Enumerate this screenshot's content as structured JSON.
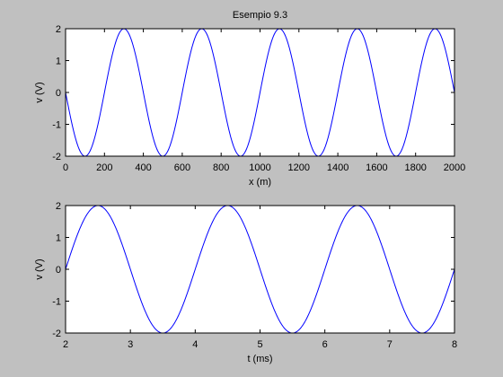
{
  "figure": {
    "background": "#c0c0c0",
    "axes_background": "#ffffff",
    "line_color": "#0000ff"
  },
  "chart_data": [
    {
      "type": "line",
      "title": "Esempio 9.3",
      "xlabel": "x (m)",
      "ylabel": "v (V)",
      "xlim": [
        0,
        2000
      ],
      "ylim": [
        -2,
        2
      ],
      "xticks": [
        0,
        200,
        400,
        600,
        800,
        1000,
        1200,
        1400,
        1600,
        1800,
        2000
      ],
      "yticks": [
        -2,
        -1,
        0,
        1,
        2
      ],
      "xtick_labels": [
        "0",
        "200",
        "400",
        "600",
        "800",
        "1000",
        "1200",
        "1400",
        "1600",
        "1800",
        "2000"
      ],
      "ytick_labels": [
        "-2",
        "-1",
        "0",
        "1",
        "2"
      ],
      "grid": false,
      "series": [
        {
          "color": "#0000ff",
          "x": [
            0,
            50,
            100,
            150,
            200,
            250,
            300,
            350,
            400,
            450,
            500,
            550,
            600,
            650,
            700,
            750,
            800,
            850,
            900,
            950,
            1000,
            1050,
            1100,
            1150,
            1200,
            1250,
            1300,
            1350,
            1400,
            1450,
            1500,
            1550,
            1600,
            1650,
            1700,
            1750,
            1800,
            1850,
            1900,
            1950,
            2000
          ],
          "y": [
            0,
            -1.414,
            -2,
            -1.414,
            0,
            1.414,
            2,
            1.414,
            0,
            -1.414,
            -2,
            -1.414,
            0,
            1.414,
            2,
            1.414,
            0,
            -1.414,
            -2,
            -1.414,
            0,
            1.414,
            2,
            1.414,
            0,
            -1.414,
            -2,
            -1.414,
            0,
            1.414,
            2,
            1.414,
            0,
            -1.414,
            -2,
            -1.414,
            0,
            1.414,
            2,
            1.414,
            0
          ]
        }
      ]
    },
    {
      "type": "line",
      "title": "",
      "xlabel": "t (ms)",
      "ylabel": "v (V)",
      "xlim": [
        2,
        8
      ],
      "ylim": [
        -2,
        2
      ],
      "xticks": [
        2,
        3,
        4,
        5,
        6,
        7,
        8
      ],
      "yticks": [
        -2,
        -1,
        0,
        1,
        2
      ],
      "xtick_labels": [
        "2",
        "3",
        "4",
        "5",
        "6",
        "7",
        "8"
      ],
      "ytick_labels": [
        "-2",
        "-1",
        "0",
        "1",
        "2"
      ],
      "grid": false,
      "series": [
        {
          "color": "#0000ff",
          "x": [
            2,
            2.25,
            2.5,
            2.75,
            3,
            3.25,
            3.5,
            3.75,
            4,
            4.25,
            4.5,
            4.75,
            5,
            5.25,
            5.5,
            5.75,
            6,
            6.25,
            6.5,
            6.75,
            7,
            7.25,
            7.5,
            7.75,
            8
          ],
          "y": [
            0,
            1.414,
            2,
            1.414,
            0,
            -1.414,
            -2,
            -1.414,
            0,
            1.414,
            2,
            1.414,
            0,
            -1.414,
            -2,
            -1.414,
            0,
            1.414,
            2,
            1.414,
            0,
            -1.414,
            -2,
            -1.414,
            0
          ]
        }
      ]
    }
  ]
}
